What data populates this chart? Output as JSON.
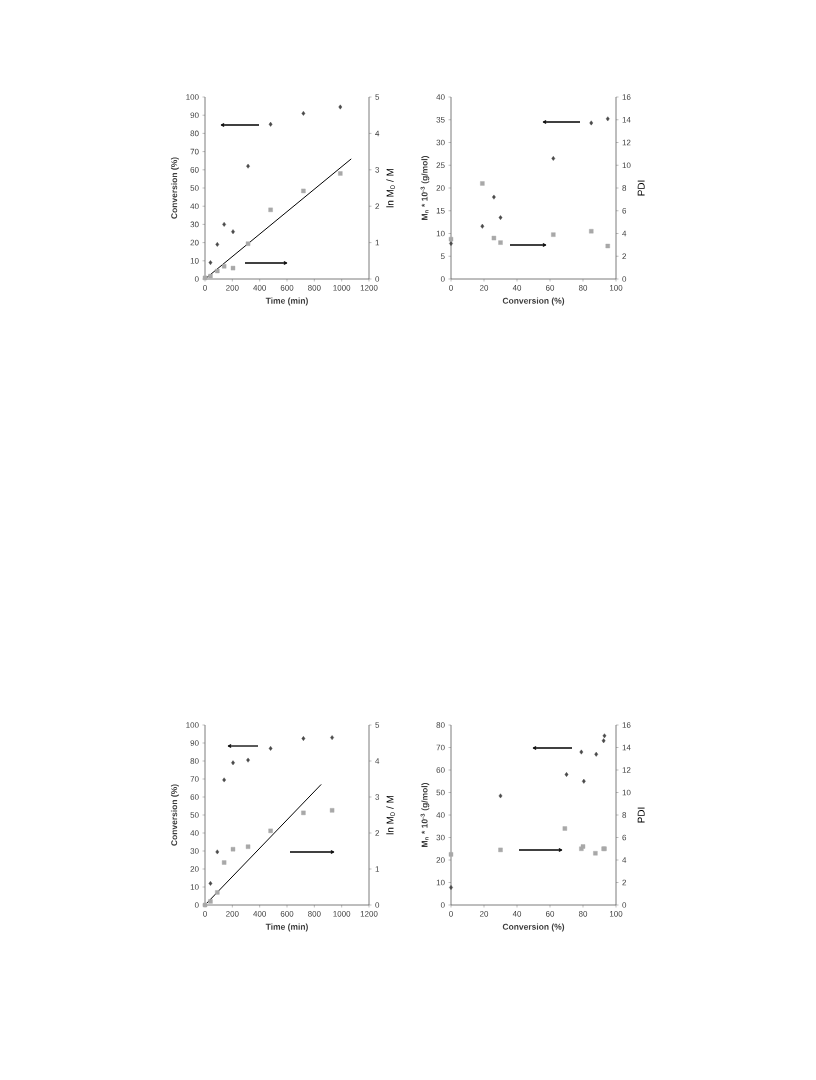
{
  "chart_data": [
    {
      "type": "scatter",
      "xlabel": "Time (min)",
      "ylabel": "Conversion (%)",
      "y2label": "ln M$_{0}$ / M",
      "xlim": [
        0,
        1200
      ],
      "xticks": [
        0,
        200,
        400,
        600,
        800,
        1000,
        1200
      ],
      "ylim": [
        0,
        100
      ],
      "yticks": [
        0,
        10,
        20,
        30,
        40,
        50,
        60,
        70,
        80,
        90,
        100
      ],
      "y2lim": [
        0,
        5
      ],
      "y2ticks": [
        0,
        1,
        2,
        3,
        4,
        5
      ],
      "series": [
        {
          "color": "#4a4a4a",
          "marker": "diamond",
          "x": [
            40,
            90,
            140,
            205,
            315,
            480,
            720,
            990
          ],
          "values": [
            9,
            19,
            30,
            26,
            62,
            85,
            91,
            94.5
          ]
        },
        {
          "color": "#a8a8a8",
          "marker": "square",
          "axis": "y2",
          "x": [
            0,
            40,
            90,
            140,
            205,
            315,
            480,
            720,
            990
          ],
          "values": [
            0.03,
            0.08,
            0.22,
            0.35,
            0.3,
            0.97,
            1.9,
            2.42,
            2.9
          ]
        },
        {
          "type": "line",
          "color": "#000000",
          "axis": "y2",
          "x": [
            0,
            1070
          ],
          "values": [
            0,
            3.3
          ]
        }
      ]
    },
    {
      "type": "scatter",
      "xlabel": "Conversion (%)",
      "ylabel": "M$_{n}$ * 10$^{-3}$ (g/mol)",
      "y2label": "PDI",
      "xlim": [
        0,
        100
      ],
      "xticks": [
        0,
        20,
        40,
        60,
        80,
        100
      ],
      "ylim": [
        0,
        40
      ],
      "yticks": [
        0,
        5,
        10,
        15,
        20,
        25,
        30,
        35,
        40
      ],
      "y2lim": [
        0,
        16
      ],
      "y2ticks": [
        0,
        2,
        4,
        6,
        8,
        10,
        12,
        14,
        16
      ],
      "series": [
        {
          "color": "#4a4a4a",
          "marker": "diamond",
          "x": [
            0,
            19,
            26,
            30,
            62,
            85,
            95
          ],
          "values": [
            7.8,
            11.6,
            18,
            13.5,
            26.5,
            34.3,
            35.2
          ]
        },
        {
          "color": "#a8a8a8",
          "marker": "square",
          "axis": "y2",
          "x": [
            0,
            19,
            26,
            30,
            62,
            85,
            95
          ],
          "values": [
            3.5,
            8.4,
            3.6,
            3.2,
            3.9,
            4.2,
            2.9
          ]
        }
      ]
    },
    {
      "type": "scatter",
      "xlabel": "Time (min)",
      "ylabel": "Conversion (%)",
      "y2label": "ln M$_{0}$ / M",
      "xlim": [
        0,
        1200
      ],
      "xticks": [
        0,
        200,
        400,
        600,
        800,
        1000,
        1200
      ],
      "ylim": [
        0,
        100
      ],
      "yticks": [
        0,
        10,
        20,
        30,
        40,
        50,
        60,
        70,
        80,
        90,
        100
      ],
      "y2lim": [
        0,
        5
      ],
      "y2ticks": [
        0,
        1,
        2,
        3,
        4,
        5
      ],
      "series": [
        {
          "color": "#4a4a4a",
          "marker": "diamond",
          "x": [
            40,
            90,
            140,
            205,
            315,
            480,
            720,
            930
          ],
          "values": [
            12,
            29.5,
            69.5,
            79,
            80.5,
            87,
            92.5,
            93
          ]
        },
        {
          "color": "#a8a8a8",
          "marker": "square",
          "axis": "y2",
          "x": [
            0,
            40,
            90,
            140,
            205,
            315,
            480,
            720,
            930
          ],
          "values": [
            0,
            0.1,
            0.35,
            1.18,
            1.55,
            1.62,
            2.06,
            2.56,
            2.63
          ]
        },
        {
          "type": "line",
          "color": "#000000",
          "axis": "y2",
          "x": [
            0,
            850
          ],
          "values": [
            0,
            3.35
          ]
        }
      ]
    },
    {
      "type": "scatter",
      "xlabel": "Conversion (%)",
      "ylabel": "M$_{n}$ * 10$^{-3}$ (g/mol)",
      "y2label": "PDI",
      "xlim": [
        0,
        100
      ],
      "xticks": [
        0,
        20,
        40,
        60,
        80,
        100
      ],
      "ylim": [
        0,
        80
      ],
      "yticks": [
        0,
        10,
        20,
        30,
        40,
        50,
        60,
        70,
        80
      ],
      "y2lim": [
        0,
        16
      ],
      "y2ticks": [
        0,
        2,
        4,
        6,
        8,
        10,
        12,
        14,
        16
      ],
      "series": [
        {
          "color": "#4a4a4a",
          "marker": "diamond",
          "x": [
            0,
            30,
            70,
            79,
            80.5,
            88,
            92.5,
            93
          ],
          "values": [
            7.8,
            48.5,
            58,
            68,
            55,
            67,
            73,
            75.2
          ]
        },
        {
          "color": "#a8a8a8",
          "marker": "square",
          "axis": "y2",
          "x": [
            0,
            30,
            69,
            79,
            80,
            87.5,
            92.5,
            93
          ],
          "values": [
            4.5,
            4.9,
            6.8,
            5,
            5.2,
            4.6,
            5,
            5
          ]
        }
      ]
    }
  ]
}
